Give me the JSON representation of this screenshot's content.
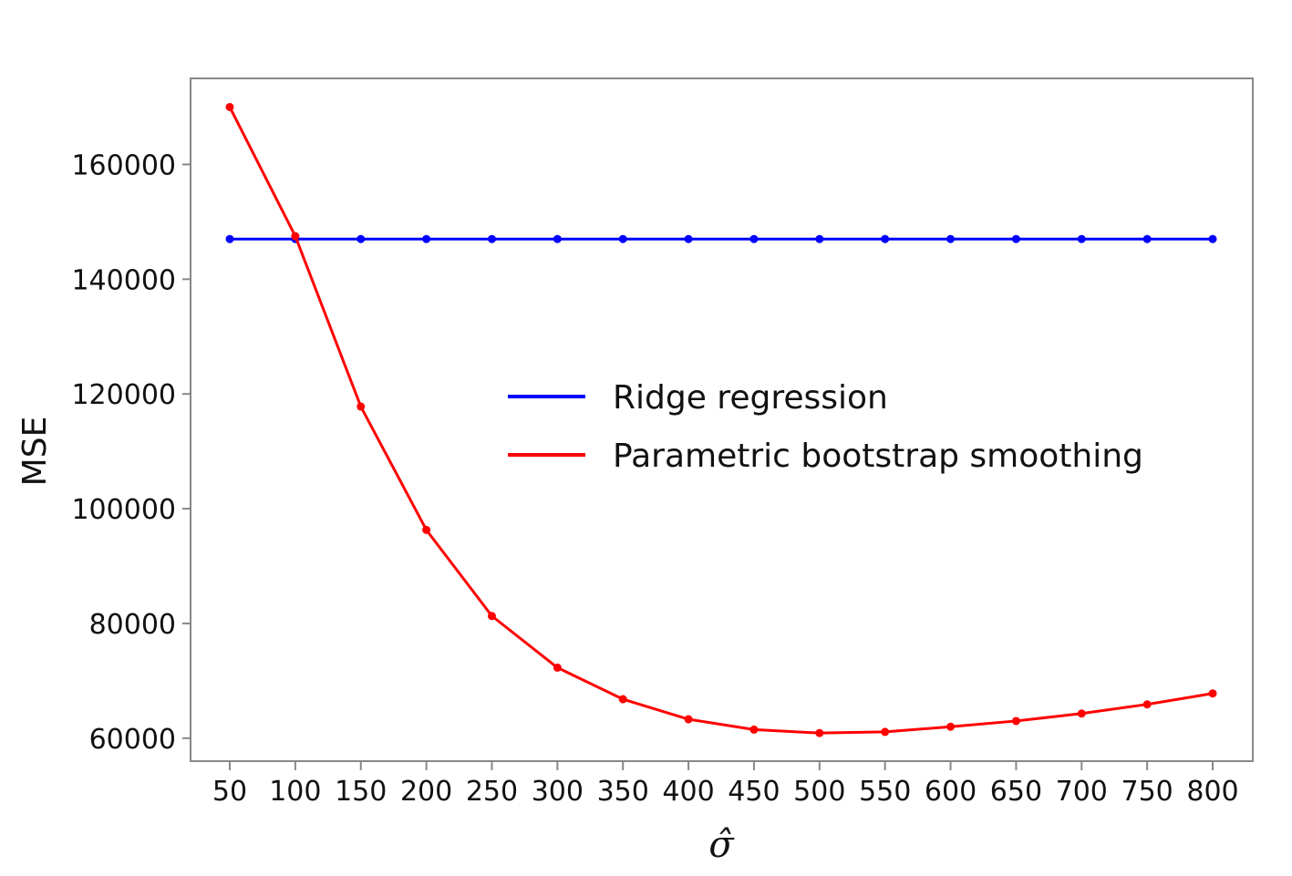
{
  "chart_data": {
    "type": "line",
    "title": "",
    "xlabel": "σ̂",
    "ylabel": "MSE",
    "x": [
      50,
      100,
      150,
      200,
      250,
      300,
      350,
      400,
      450,
      500,
      550,
      600,
      650,
      700,
      750,
      800
    ],
    "xticks": [
      "50",
      "100",
      "150",
      "200",
      "250",
      "300",
      "350",
      "400",
      "450",
      "500",
      "550",
      "600",
      "650",
      "700",
      "750",
      "800"
    ],
    "yticks": [
      60000,
      80000,
      100000,
      120000,
      140000,
      160000
    ],
    "ylim": [
      56000,
      175000
    ],
    "grid": false,
    "legend_position": "center-right",
    "series": [
      {
        "name": "Ridge regression",
        "color": "#0000ff",
        "values": [
          147000,
          147000,
          147000,
          147000,
          147000,
          147000,
          147000,
          147000,
          147000,
          147000,
          147000,
          147000,
          147000,
          147000,
          147000,
          147000
        ]
      },
      {
        "name": "Parametric bootstrap smoothing",
        "color": "#ff0000",
        "values": [
          170000,
          147500,
          117800,
          96300,
          81300,
          72300,
          66800,
          63300,
          61500,
          60900,
          61100,
          62000,
          63000,
          64300,
          65900,
          67800
        ]
      }
    ]
  }
}
